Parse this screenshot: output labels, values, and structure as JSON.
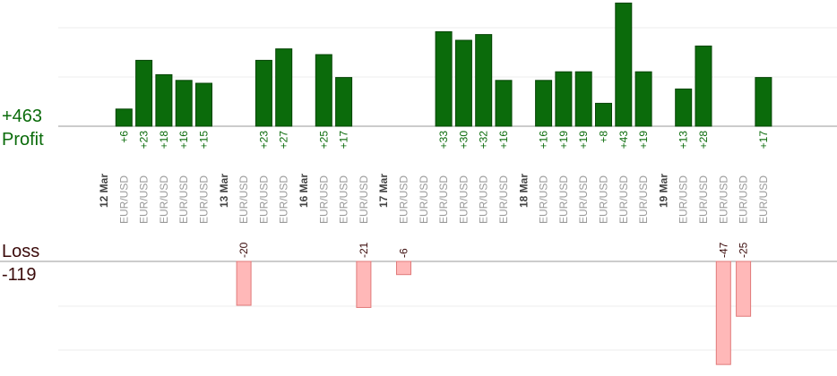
{
  "profit_total": "+463",
  "profit_label": "Profit",
  "loss_label": "Loss",
  "loss_total": "-119",
  "colors": {
    "profit_bar": "#0b6b0b",
    "profit_bar_edge": "#064406",
    "profit_text": "#0a6b0a",
    "loss_bar": "#ffb8b8",
    "loss_bar_edge": "#e07a7a",
    "loss_text": "#3a0a0a",
    "date_text": "#444444",
    "pair_text": "#999999",
    "grid": "#eeeeee",
    "axis": "#999999"
  },
  "chart_data": {
    "type": "bar",
    "profit_ylim": [
      0,
      36
    ],
    "loss_ylim": [
      -50,
      0
    ],
    "columns": [
      {
        "date": "12 Mar"
      },
      {
        "pair": "EUR/USD",
        "profit": 6,
        "label": "+6"
      },
      {
        "pair": "EUR/USD",
        "profit": 23,
        "label": "+23"
      },
      {
        "pair": "EUR/USD",
        "profit": 18,
        "label": "+18"
      },
      {
        "pair": "EUR/USD",
        "profit": 16,
        "label": "+16"
      },
      {
        "pair": "EUR/USD",
        "profit": 15,
        "label": "+15"
      },
      {
        "date": "13 Mar"
      },
      {
        "pair": "EUR/USD",
        "loss": -20,
        "label": "-20"
      },
      {
        "pair": "EUR/USD",
        "profit": 23,
        "label": "+23"
      },
      {
        "pair": "EUR/USD",
        "profit": 27,
        "label": "+27"
      },
      {
        "date": "16 Mar"
      },
      {
        "pair": "EUR/USD",
        "profit": 25,
        "label": "+25"
      },
      {
        "pair": "EUR/USD",
        "profit": 17,
        "label": "+17"
      },
      {
        "pair": "EUR/USD",
        "loss": -21,
        "label": "-21"
      },
      {
        "date": "17 Mar"
      },
      {
        "pair": "EUR/USD",
        "loss": -6,
        "label": "-6"
      },
      {
        "pair": "EUR/USD"
      },
      {
        "pair": "EUR/USD",
        "profit": 33,
        "label": "+33"
      },
      {
        "pair": "EUR/USD",
        "profit": 30,
        "label": "+30"
      },
      {
        "pair": "EUR/USD",
        "profit": 32,
        "label": "+32"
      },
      {
        "pair": "EUR/USD",
        "profit": 16,
        "label": "+16"
      },
      {
        "date": "18 Mar"
      },
      {
        "pair": "EUR/USD",
        "profit": 16,
        "label": "+16"
      },
      {
        "pair": "EUR/USD",
        "profit": 19,
        "label": "+19"
      },
      {
        "pair": "EUR/USD",
        "profit": 19,
        "label": "+19"
      },
      {
        "pair": "EUR/USD",
        "profit": 8,
        "label": "+8"
      },
      {
        "pair": "EUR/USD",
        "profit": 43,
        "label": "+43"
      },
      {
        "pair": "EUR/USD",
        "profit": 19,
        "label": "+19"
      },
      {
        "date": "19 Mar"
      },
      {
        "pair": "EUR/USD",
        "profit": 13,
        "label": "+13"
      },
      {
        "pair": "EUR/USD",
        "profit": 28,
        "label": "+28"
      },
      {
        "pair": "EUR/USD",
        "loss": -47,
        "label": "-47"
      },
      {
        "pair": "EUR/USD",
        "loss": -25,
        "label": "-25"
      },
      {
        "pair": "EUR/USD",
        "profit": 17,
        "label": "+17"
      }
    ]
  }
}
